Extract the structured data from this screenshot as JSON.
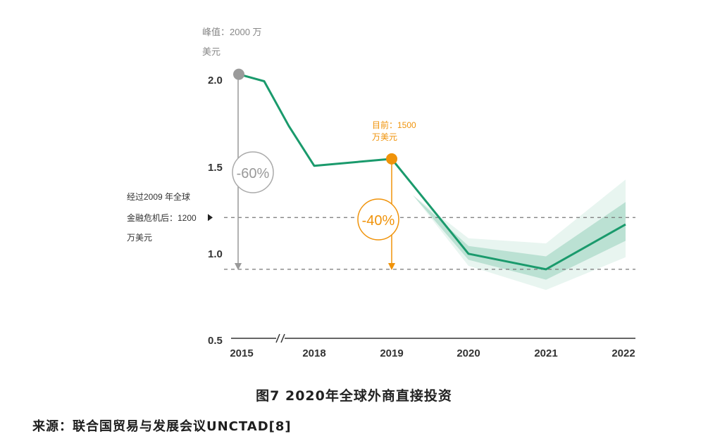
{
  "chart_data": {
    "type": "line",
    "categories": [
      "2015",
      "2018",
      "2019",
      "2020",
      "2021",
      "2022"
    ],
    "ylabel_ticks": [
      "2.0",
      "1.5",
      "1.0",
      "0.5"
    ],
    "ylim": [
      0.5,
      2.1
    ],
    "series": [
      {
        "points": [
          {
            "x": "2015",
            "y": 2.03
          },
          {
            "x": "2016",
            "y": 1.99
          },
          {
            "x": "2017",
            "y": 1.73
          },
          {
            "x": "2018",
            "y": 1.5
          },
          {
            "x": "2019",
            "y": 1.54
          },
          {
            "x": "2020",
            "y": 0.99
          },
          {
            "x": "2021",
            "y": 0.9
          },
          {
            "x": "2022",
            "y": 1.16
          }
        ],
        "forecast_band": {
          "x": [
            "2020",
            "2021",
            "2022"
          ],
          "upper": [
            1.08,
            1.05,
            1.42
          ],
          "lower": [
            0.92,
            0.78,
            0.97
          ]
        }
      }
    ],
    "reference_lines": [
      {
        "y": 1.2,
        "style": "dashed"
      },
      {
        "y": 0.9,
        "style": "dashed"
      }
    ],
    "annotations": {
      "peak_label_line1": "峰值：2000 万",
      "peak_label_line2": "美元",
      "target_label_line1": "目前：1500",
      "target_label_line2": "万美元",
      "crisis_label_line1": "经过2009 年全球",
      "crisis_label_line2": "金融危机后：1200",
      "crisis_label_line3": "万美元",
      "drop_60": "-60%",
      "drop_40": "-40%"
    },
    "colors": {
      "line": "#1a9a6c",
      "peak_marker": "#9a9a9a",
      "target_marker": "#f0930a",
      "orange_text": "#f0930a",
      "gray_text": "#888888",
      "dashed": "#777777"
    },
    "grid": false,
    "axis_break_between": [
      "2015",
      "2018"
    ]
  },
  "figure": {
    "caption": "图7 2020年全球外商直接投资",
    "source": "来源：联合国贸易与发展会议UNCTAD[8]"
  }
}
